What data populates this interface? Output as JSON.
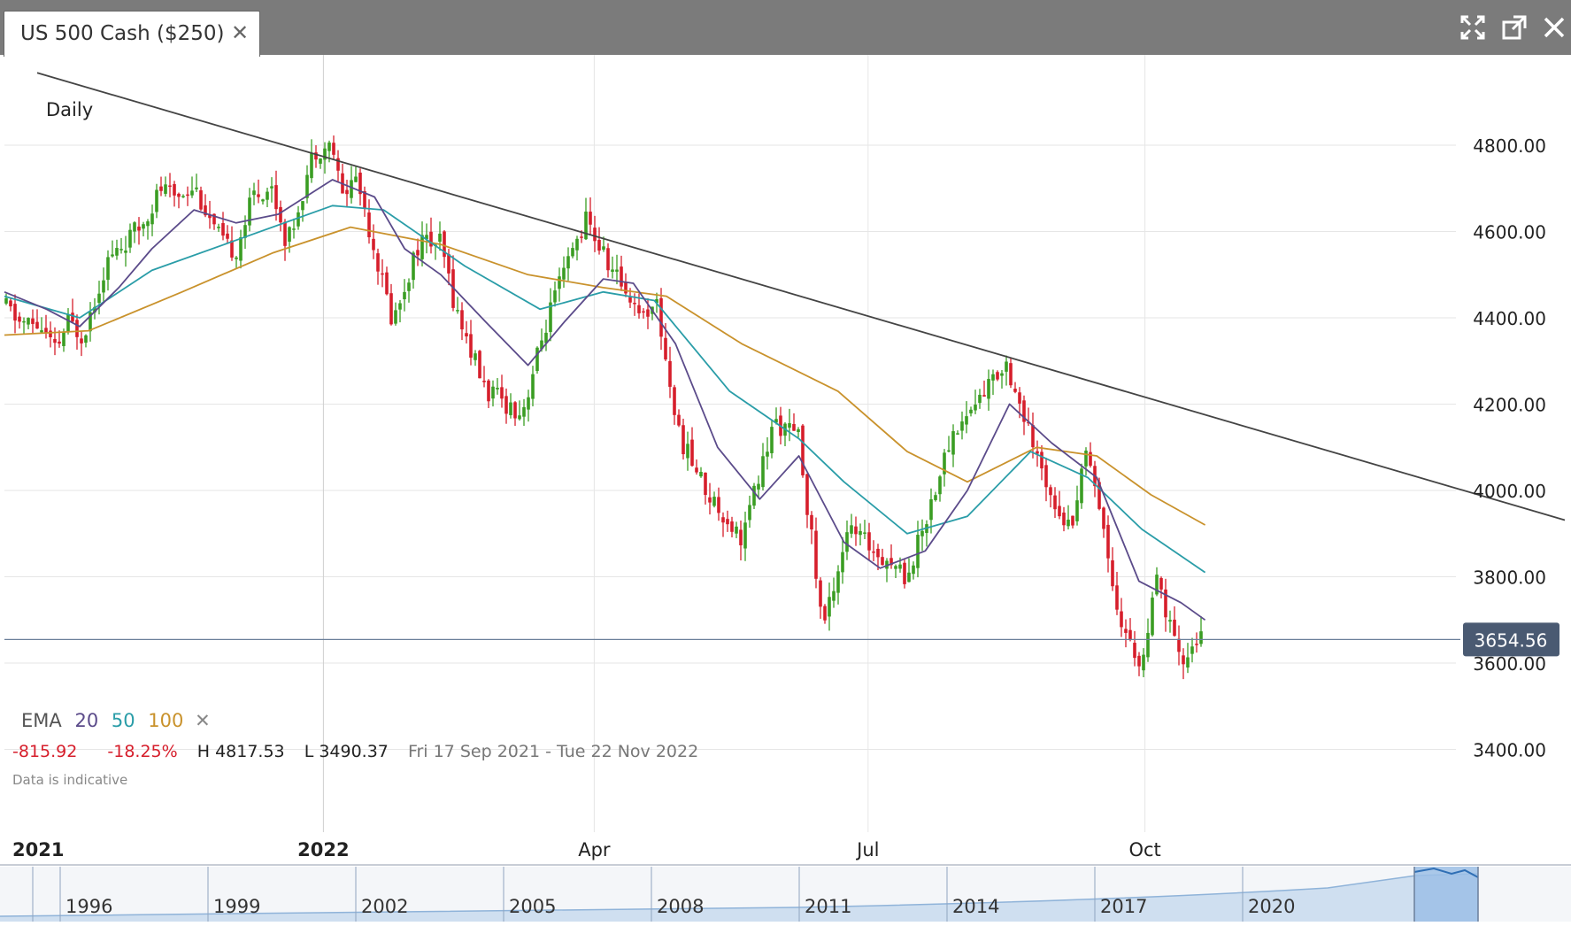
{
  "window": {
    "tab_title": "US 500 Cash ($250)",
    "close_icon": "close-icon",
    "controls": [
      "expand-icon",
      "popout-icon",
      "close-window-icon"
    ]
  },
  "chart_data": {
    "type": "candlestick",
    "instrument": "US 500 Cash ($250)",
    "interval": "Daily",
    "date_range": "Fri 17 Sep 2021 - Tue 22 Nov 2022",
    "last_price": "3654.56",
    "stats": {
      "change": "-815.92",
      "change_pct": "-18.25%",
      "high": "H 4817.53",
      "low": "L 3490.37"
    },
    "note": "Data is indicative",
    "ylim": [
      3300,
      5000
    ],
    "y_ticks": [
      "4800.00",
      "4600.00",
      "4400.00",
      "4200.00",
      "4000.00",
      "3800.00",
      "3600.00",
      "3400.00"
    ],
    "x_ticks": [
      "2021",
      "2022",
      "Apr",
      "Jul",
      "Oct"
    ],
    "ema_legend": {
      "label": "EMA",
      "periods": [
        "20",
        "50",
        "100"
      ]
    },
    "colors": {
      "up": "#3a9d23",
      "down": "#d61e2b",
      "ema20": "#5b4b8a",
      "ema50": "#2a9da8",
      "ema100": "#c9922c",
      "trendline": "#444444",
      "price_tag": "#4a5a72"
    },
    "price_path": [
      [
        "2021-09-17",
        4430
      ],
      [
        "2021-09-22",
        4390
      ],
      [
        "2021-09-29",
        4380
      ],
      [
        "2021-10-04",
        4320
      ],
      [
        "2021-10-08",
        4390
      ],
      [
        "2021-10-13",
        4360
      ],
      [
        "2021-10-21",
        4530
      ],
      [
        "2021-11-01",
        4610
      ],
      [
        "2021-11-08",
        4700
      ],
      [
        "2021-11-12",
        4680
      ],
      [
        "2021-11-19",
        4710
      ],
      [
        "2021-11-26",
        4600
      ],
      [
        "2021-11-30",
        4560
      ],
      [
        "2021-12-03",
        4560
      ],
      [
        "2021-12-09",
        4690
      ],
      [
        "2021-12-15",
        4700
      ],
      [
        "2021-12-20",
        4570
      ],
      [
        "2021-12-29",
        4790
      ],
      [
        "2022-01-04",
        4800
      ],
      [
        "2022-01-07",
        4680
      ],
      [
        "2022-01-12",
        4730
      ],
      [
        "2022-01-19",
        4530
      ],
      [
        "2022-01-24",
        4390
      ],
      [
        "2022-02-02",
        4580
      ],
      [
        "2022-02-09",
        4570
      ],
      [
        "2022-02-14",
        4420
      ],
      [
        "2022-02-24",
        4230
      ],
      [
        "2022-03-08",
        4180
      ],
      [
        "2022-03-17",
        4410
      ],
      [
        "2022-03-29",
        4630
      ],
      [
        "2022-04-06",
        4520
      ],
      [
        "2022-04-18",
        4400
      ],
      [
        "2022-04-21",
        4460
      ],
      [
        "2022-04-29",
        4130
      ],
      [
        "2022-05-09",
        3990
      ],
      [
        "2022-05-20",
        3890
      ],
      [
        "2022-05-31",
        4160
      ],
      [
        "2022-06-08",
        4120
      ],
      [
        "2022-06-16",
        3680
      ],
      [
        "2022-06-24",
        3910
      ],
      [
        "2022-07-06",
        3850
      ],
      [
        "2022-07-14",
        3800
      ],
      [
        "2022-07-29",
        4130
      ],
      [
        "2022-08-16",
        4300
      ],
      [
        "2022-08-26",
        4070
      ],
      [
        "2022-09-06",
        3910
      ],
      [
        "2022-09-12",
        4110
      ],
      [
        "2022-09-23",
        3690
      ],
      [
        "2022-09-30",
        3590
      ],
      [
        "2022-10-05",
        3790
      ],
      [
        "2022-10-13",
        3590
      ],
      [
        "2022-10-18",
        3660
      ],
      [
        "2022-10-21",
        3650
      ]
    ],
    "ema20": [
      [
        "2021-09-17",
        4460
      ],
      [
        "2021-10-01",
        4420
      ],
      [
        "2021-10-12",
        4380
      ],
      [
        "2021-10-25",
        4470
      ],
      [
        "2021-11-05",
        4560
      ],
      [
        "2021-11-19",
        4650
      ],
      [
        "2021-12-03",
        4620
      ],
      [
        "2021-12-17",
        4640
      ],
      [
        "2022-01-04",
        4720
      ],
      [
        "2022-01-18",
        4680
      ],
      [
        "2022-01-28",
        4560
      ],
      [
        "2022-02-09",
        4500
      ],
      [
        "2022-02-24",
        4390
      ],
      [
        "2022-03-10",
        4290
      ],
      [
        "2022-03-22",
        4390
      ],
      [
        "2022-04-04",
        4490
      ],
      [
        "2022-04-14",
        4480
      ],
      [
        "2022-04-28",
        4340
      ],
      [
        "2022-05-12",
        4100
      ],
      [
        "2022-05-26",
        3980
      ],
      [
        "2022-06-08",
        4080
      ],
      [
        "2022-06-23",
        3880
      ],
      [
        "2022-07-05",
        3820
      ],
      [
        "2022-07-20",
        3860
      ],
      [
        "2022-08-03",
        4000
      ],
      [
        "2022-08-17",
        4200
      ],
      [
        "2022-08-31",
        4110
      ],
      [
        "2022-09-15",
        4030
      ],
      [
        "2022-09-29",
        3790
      ],
      [
        "2022-10-13",
        3740
      ],
      [
        "2022-10-21",
        3700
      ]
    ],
    "ema50": [
      [
        "2021-09-17",
        4450
      ],
      [
        "2021-10-12",
        4400
      ],
      [
        "2021-11-05",
        4510
      ],
      [
        "2021-12-03",
        4580
      ],
      [
        "2022-01-04",
        4660
      ],
      [
        "2022-01-21",
        4650
      ],
      [
        "2022-02-17",
        4520
      ],
      [
        "2022-03-14",
        4420
      ],
      [
        "2022-04-04",
        4460
      ],
      [
        "2022-04-21",
        4440
      ],
      [
        "2022-05-16",
        4230
      ],
      [
        "2022-06-08",
        4120
      ],
      [
        "2022-06-23",
        4020
      ],
      [
        "2022-07-14",
        3900
      ],
      [
        "2022-08-03",
        3940
      ],
      [
        "2022-08-24",
        4090
      ],
      [
        "2022-09-12",
        4030
      ],
      [
        "2022-09-30",
        3910
      ],
      [
        "2022-10-21",
        3810
      ]
    ],
    "ema100": [
      [
        "2021-09-17",
        4360
      ],
      [
        "2021-10-15",
        4370
      ],
      [
        "2021-11-15",
        4460
      ],
      [
        "2021-12-15",
        4550
      ],
      [
        "2022-01-10",
        4610
      ],
      [
        "2022-02-09",
        4570
      ],
      [
        "2022-03-10",
        4500
      ],
      [
        "2022-04-04",
        4470
      ],
      [
        "2022-04-25",
        4450
      ],
      [
        "2022-05-20",
        4340
      ],
      [
        "2022-06-21",
        4230
      ],
      [
        "2022-07-14",
        4090
      ],
      [
        "2022-08-03",
        4020
      ],
      [
        "2022-08-26",
        4100
      ],
      [
        "2022-09-15",
        4080
      ],
      [
        "2022-10-03",
        3990
      ],
      [
        "2022-10-21",
        3920
      ]
    ],
    "trendline": [
      [
        "2021-09-17",
        4990
      ],
      [
        "2022-11-22",
        4110
      ]
    ]
  },
  "navigator": {
    "years": [
      "1996",
      "1999",
      "2002",
      "2005",
      "2008",
      "2011",
      "2014",
      "2017",
      "2020"
    ]
  }
}
